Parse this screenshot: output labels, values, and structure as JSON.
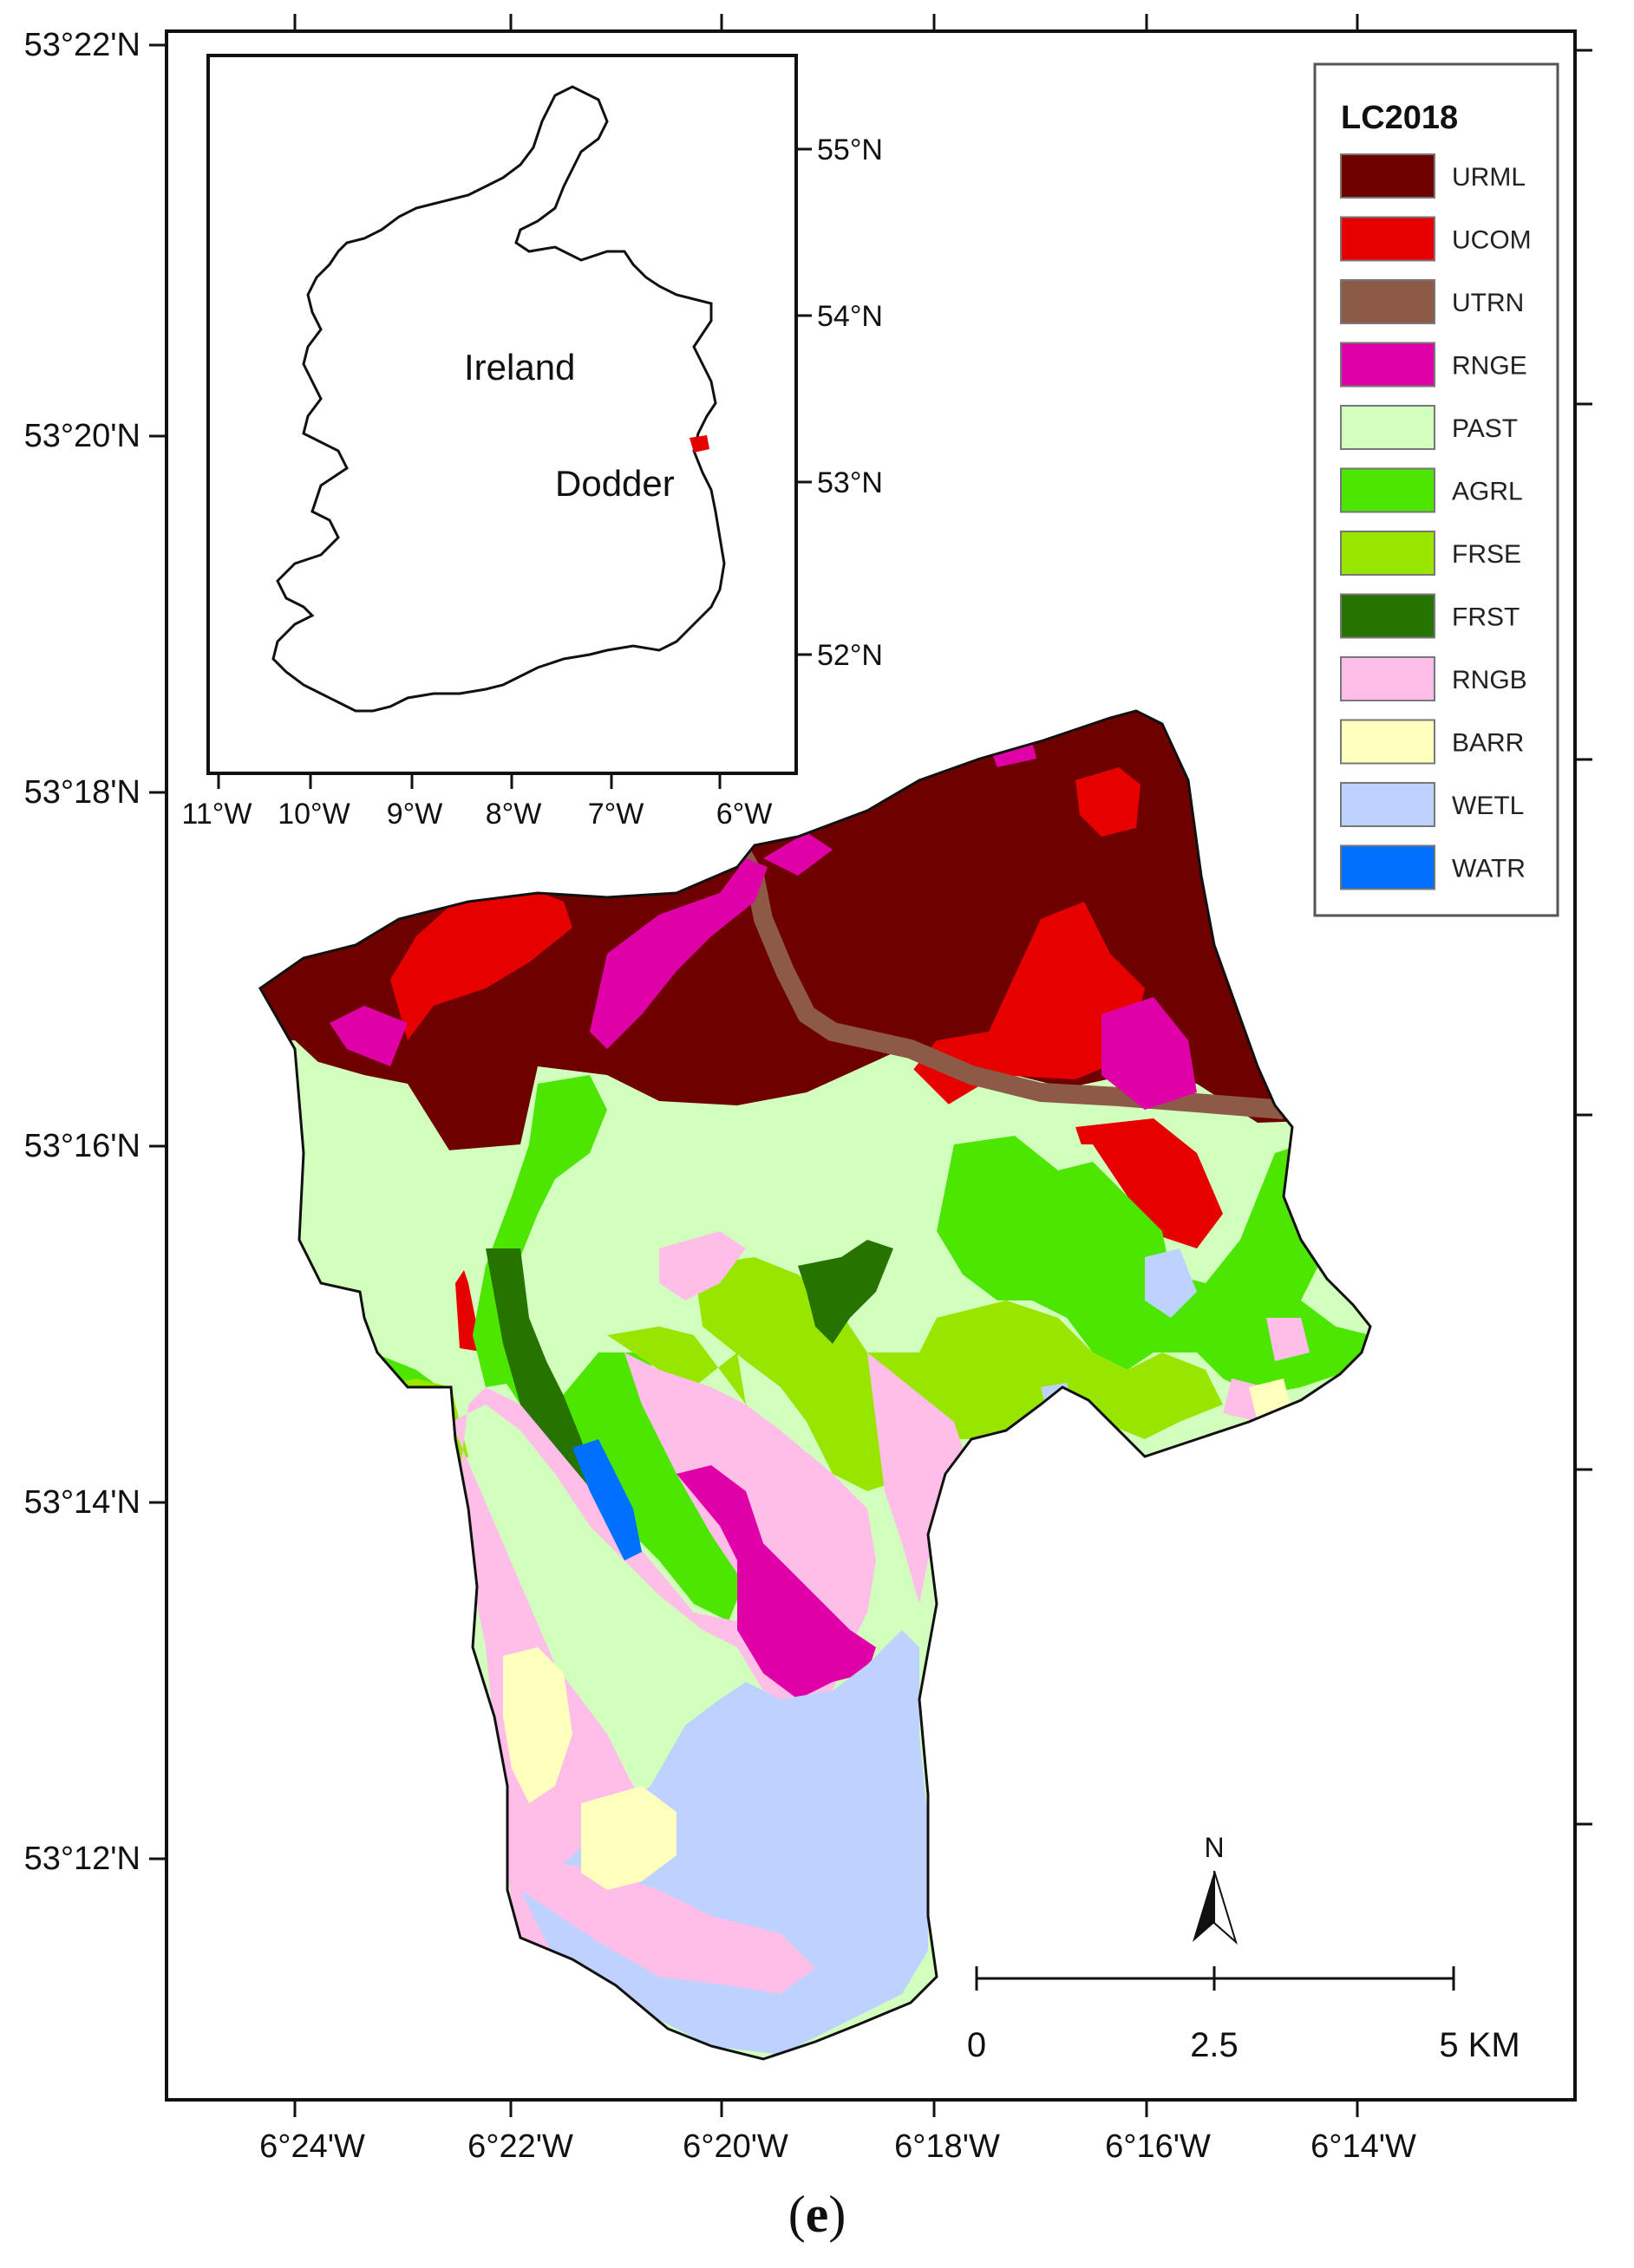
{
  "frame_ticks": {
    "lat": [
      "53°22'N",
      "53°20'N",
      "53°18'N",
      "53°16'N",
      "53°14'N",
      "53°12'N"
    ],
    "lon": [
      "6°24'W",
      "6°22'W",
      "6°20'W",
      "6°18'W",
      "6°16'W",
      "6°14'W"
    ]
  },
  "inset": {
    "lat_ticks": [
      "55°N",
      "54°N",
      "53°N",
      "52°N"
    ],
    "lon_ticks": [
      "11°W",
      "10°W",
      "9°W",
      "8°W",
      "7°W",
      "6°W"
    ],
    "country_label": "Ireland",
    "catchment_label": "Dodder"
  },
  "legend": {
    "title": "LC2018",
    "items": [
      {
        "code": "URML",
        "color": "#6e0000"
      },
      {
        "code": "UCOM",
        "color": "#e60000"
      },
      {
        "code": "UTRN",
        "color": "#8c5a46"
      },
      {
        "code": "RNGE",
        "color": "#e000a8"
      },
      {
        "code": "PAST",
        "color": "#d3ffbe"
      },
      {
        "code": "AGRL",
        "color": "#4ce600"
      },
      {
        "code": "FRSE",
        "color": "#98e600"
      },
      {
        "code": "FRST",
        "color": "#267300"
      },
      {
        "code": "RNGB",
        "color": "#ffbee8"
      },
      {
        "code": "BARR",
        "color": "#ffffbe"
      },
      {
        "code": "WETL",
        "color": "#bed2ff"
      },
      {
        "code": "WATR",
        "color": "#0070ff"
      }
    ]
  },
  "north_arrow": {
    "label": "N"
  },
  "scale_bar": {
    "labels": [
      "0",
      "2.5",
      "5 KM"
    ]
  },
  "caption": {
    "letter": "e"
  }
}
